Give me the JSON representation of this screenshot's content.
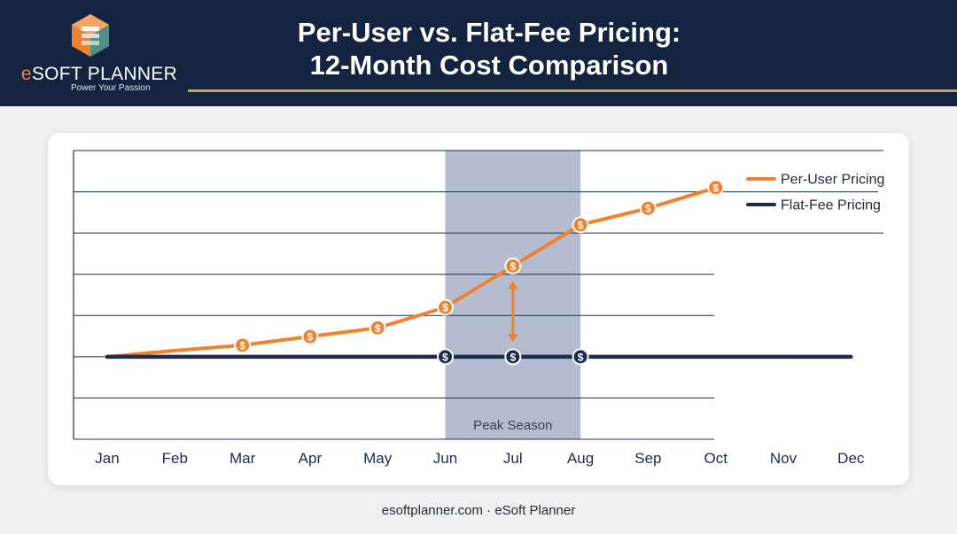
{
  "header": {
    "brand_prefix": "e",
    "brand_rest": "SOFT PLANNER",
    "tagline": "Power Your Passion",
    "title_line1": "Per-User vs. Flat-Fee Pricing:",
    "title_line2": "12-Month Cost Comparison"
  },
  "footer": {
    "text": "esoftplanner.com · eSoft Planner"
  },
  "colors": {
    "header_bg": "#14233f",
    "accent_orange": "#f0812e",
    "navy": "#1c2c4f",
    "gold_rule": "#c7a24e",
    "highlight": "#a9b0c8"
  },
  "icons": {
    "marker": "dollar-coin-icon",
    "logo": "stacked-cube-logo-icon"
  },
  "chart_data": {
    "type": "line",
    "categories": [
      "Jan",
      "Feb",
      "Mar",
      "Apr",
      "May",
      "Jun",
      "Jul",
      "Aug",
      "Sep",
      "Oct",
      "Nov",
      "Dec"
    ],
    "title": "",
    "xlabel": "",
    "ylabel": "",
    "ylim": [
      0,
      7
    ],
    "grid": true,
    "legend_position": "top-right",
    "series": [
      {
        "name": "Per-User Pricing",
        "color": "#f0812e",
        "values": [
          2.0,
          2.15,
          2.28,
          2.49,
          2.7,
          3.2,
          4.2,
          5.2,
          5.6,
          6.1,
          null,
          null
        ],
        "markers": [
          "Mar",
          "Apr",
          "May",
          "Jun",
          "Jul",
          "Aug",
          "Sep",
          "Oct"
        ]
      },
      {
        "name": "Flat-Fee Pricing",
        "color": "#1c2c4f",
        "values": [
          2.0,
          2.0,
          2.0,
          2.0,
          2.0,
          2.0,
          2.0,
          2.0,
          2.0,
          2.0,
          2.0,
          2.0
        ],
        "markers": [
          "Jun",
          "Jul",
          "Aug"
        ]
      }
    ],
    "highlight": {
      "label": "Peak Season",
      "from": "Jun",
      "to": "Aug"
    },
    "gap_arrow_at": "Jul",
    "marker_symbol": "$"
  }
}
